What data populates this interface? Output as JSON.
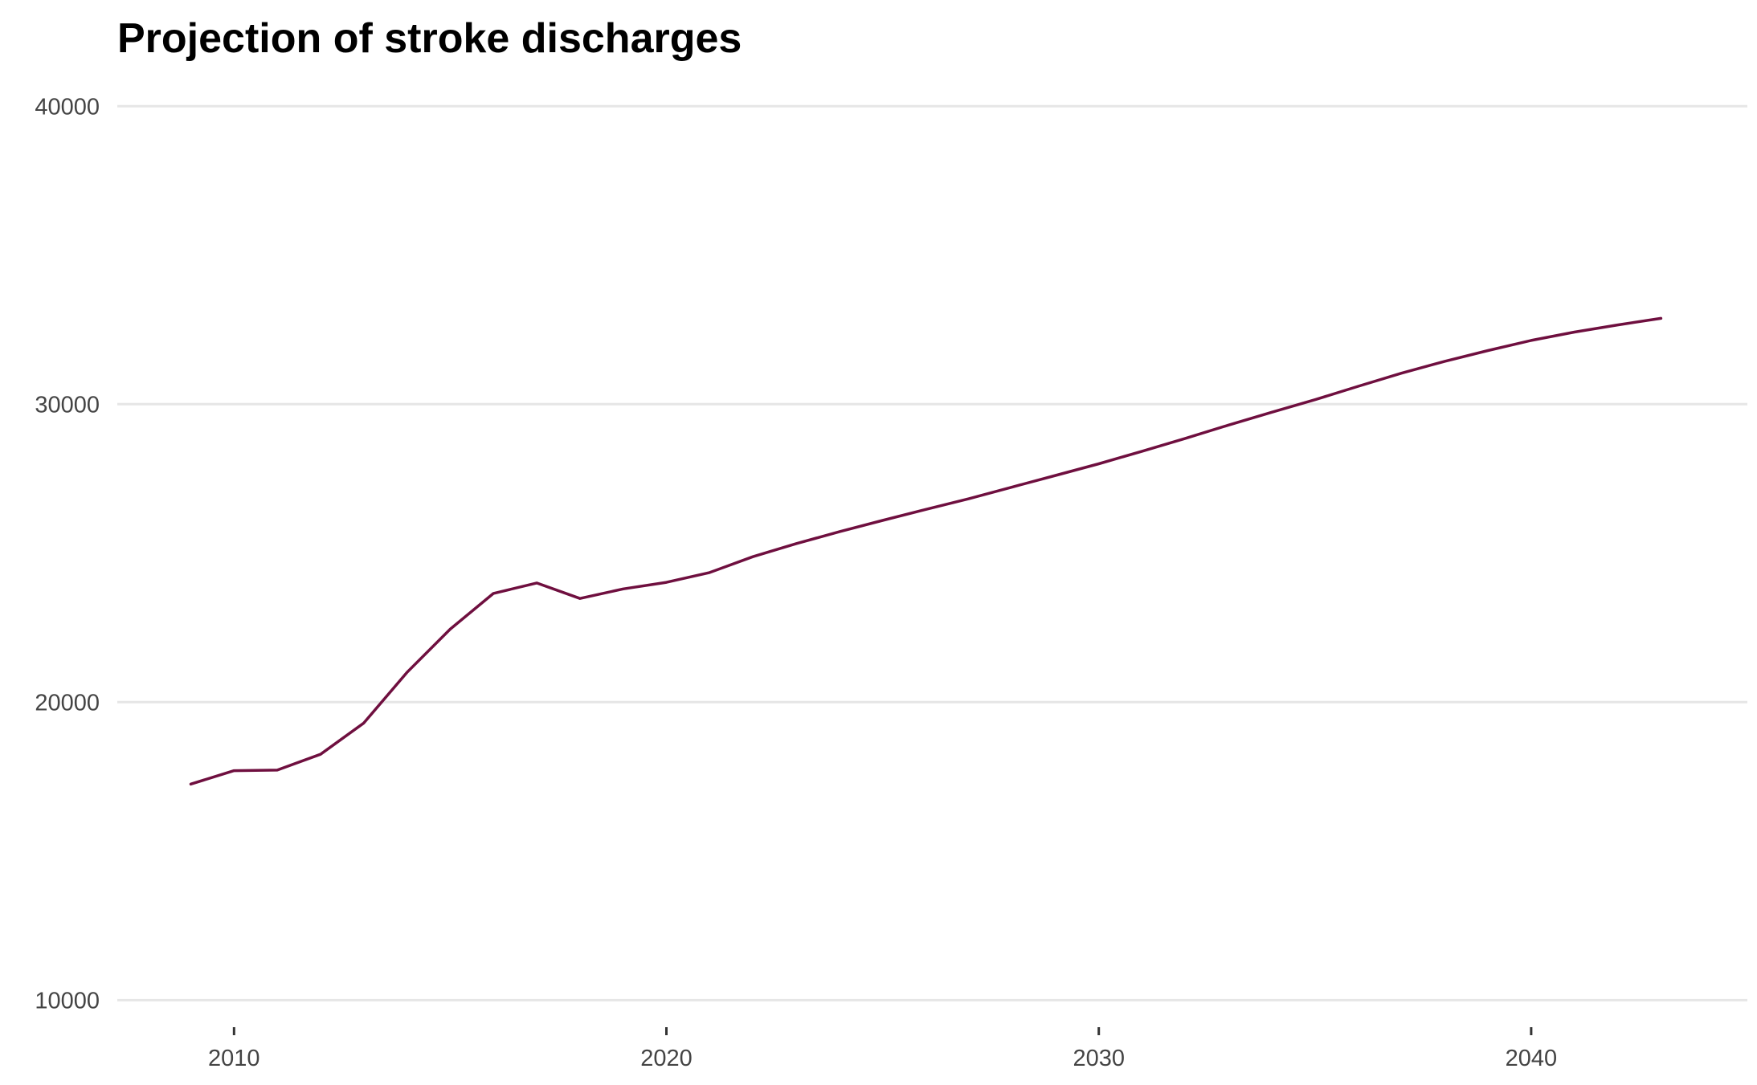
{
  "colors": {
    "series": "#6f0f3f",
    "grid": "#e6e6e6",
    "tick_text": "#444444"
  },
  "chart_data": {
    "type": "line",
    "title": "Projection of stroke discharges",
    "xlabel": "",
    "ylabel": "",
    "xlim": [
      2007.3,
      2045.0
    ],
    "ylim": [
      9200,
      40600
    ],
    "x_ticks": [
      2010,
      2020,
      2030,
      2040
    ],
    "y_ticks": [
      10000,
      20000,
      30000,
      40000
    ],
    "grid": "horizontal",
    "legend": "none",
    "series": [
      {
        "x": [
          2009,
          2010,
          2011,
          2012,
          2013,
          2014,
          2015,
          2016,
          2017,
          2018,
          2019,
          2020,
          2021,
          2022,
          2023,
          2024,
          2025,
          2026,
          2027,
          2028,
          2029,
          2030,
          2031,
          2032,
          2033,
          2034,
          2035,
          2036,
          2037,
          2038,
          2039,
          2040,
          2041,
          2042,
          2043
        ],
        "values": [
          17250,
          17700,
          17720,
          18250,
          19300,
          21000,
          22450,
          23650,
          24000,
          23480,
          23800,
          24020,
          24350,
          24880,
          25320,
          25720,
          26100,
          26470,
          26830,
          27220,
          27610,
          28000,
          28420,
          28850,
          29300,
          29730,
          30150,
          30600,
          31040,
          31440,
          31800,
          32140,
          32420,
          32660,
          32880
        ]
      }
    ]
  }
}
